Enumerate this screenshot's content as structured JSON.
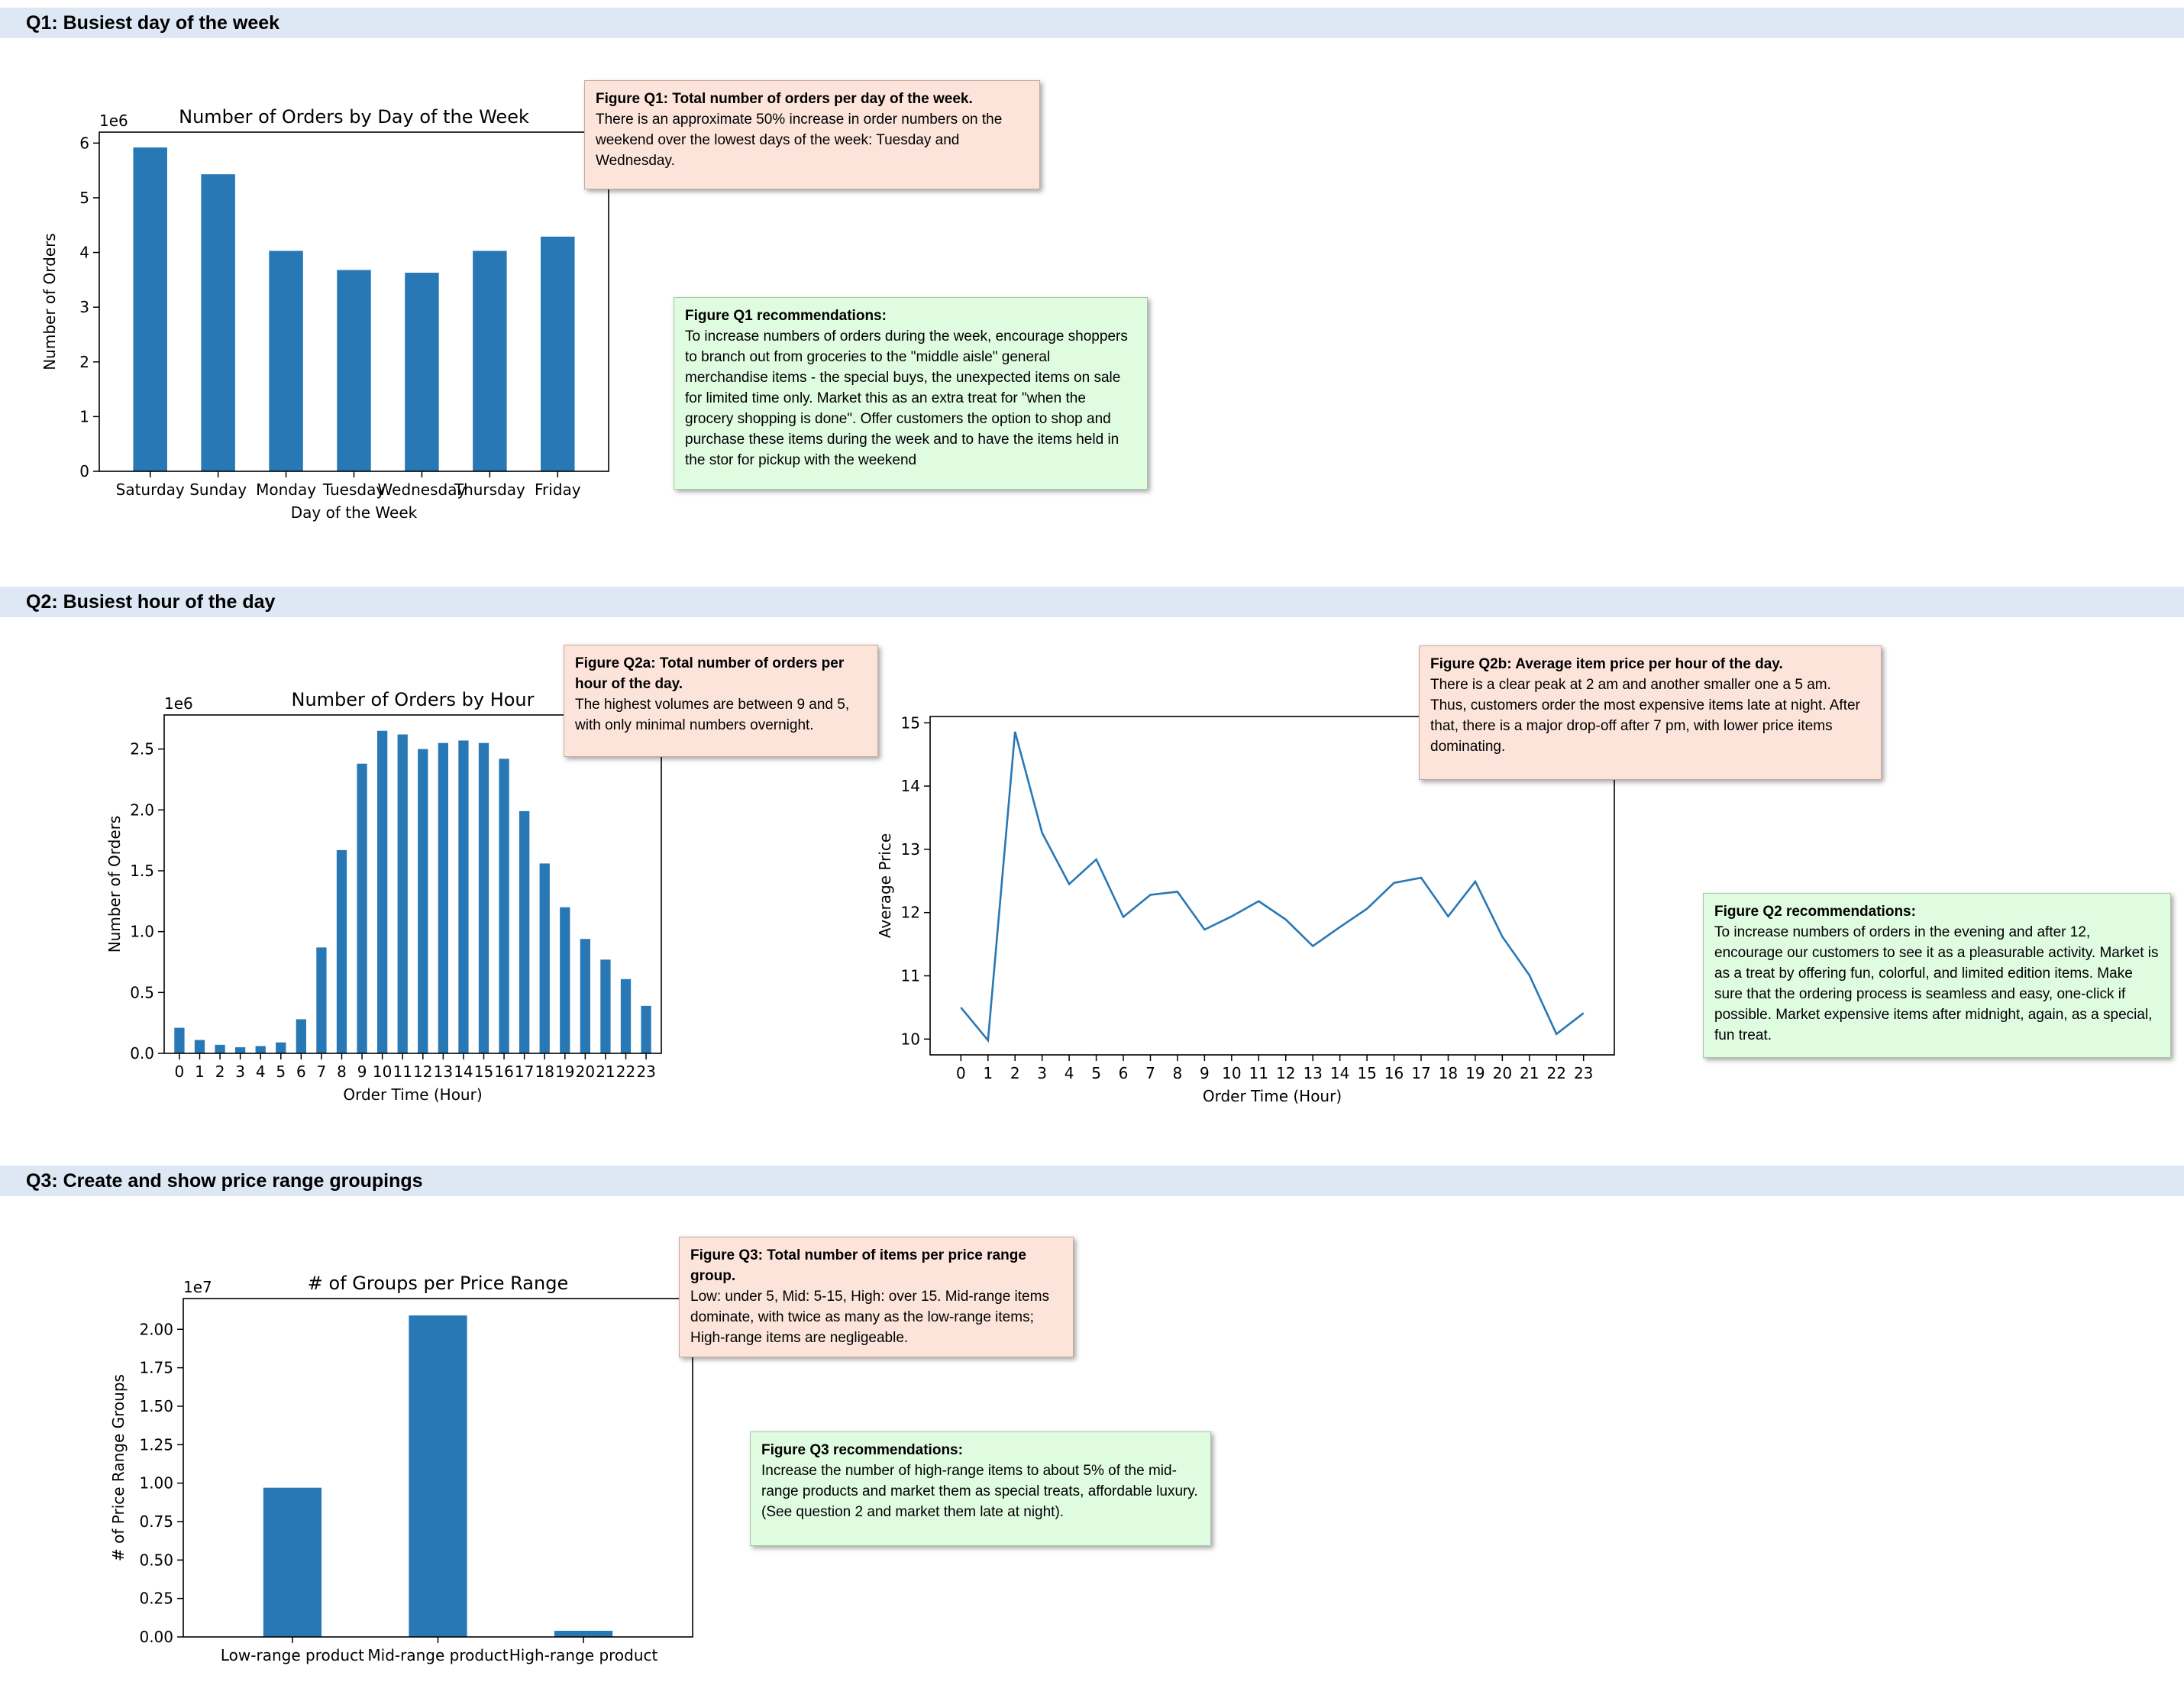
{
  "sections": {
    "q1": "Q1: Busiest day of the week",
    "q2": "Q2: Busiest hour of the day",
    "q3": "Q3: Create and show price range groupings"
  },
  "notes": {
    "q1_fig": {
      "title": "Figure Q1: Total number of orders  per day of the week.",
      "body": "There is an approximate 50% increase in order numbers on the weekend over the lowest days of the week: Tuesday and Wednesday."
    },
    "q1_rec": {
      "title": "Figure Q1 recommendations:",
      "body": "To increase numbers of orders during the week, encourage shoppers to branch out from groceries to the \"middle aisle\" general merchandise items  - the special buys, the unexpected items on sale for limited time only. Market this as an extra treat for \"when the grocery shopping is done\". Offer customers the option to shop and purchase these items during the week and to have the items held in the stor for pickup with the weekend"
    },
    "q2a_fig": {
      "title": "Figure Q2a: Total number of orders  per hour of the day.",
      "body": "The highest volumes are between 9 and 5, with only minimal numbers overnight."
    },
    "q2b_fig": {
      "title": "Figure Q2b: Average item price per hour of the day.",
      "body": "There is a clear peak at 2 am and another smaller one a 5 am. Thus, customers order the most expensive items late at night. After that, there is a major drop-off after 7 pm, with lower price items dominating."
    },
    "q2_rec": {
      "title": "Figure Q2 recommendations:",
      "body": "To increase numbers of orders in the evening and after 12, encourage our customers to see it as a pleasurable activity. Market is as a treat by offering fun, colorful, and limited edition items. Make sure that the ordering process is seamless and easy, one-click if possible. Market expensive items after midnight, again, as a special, fun treat."
    },
    "q3_fig": {
      "title": "Figure Q3: Total number of items per price range group.",
      "body": "Low: under 5, Mid: 5-15, High: over 15. Mid-range items dominate, with twice as many as the low-range items; High-range items are negligeable."
    },
    "q3_rec": {
      "title": "Figure Q3 recommendations:",
      "body": "Increase the number of high-range items to about 5% of the mid-range products and market them as special treats, affordable luxury. (See question 2 and market them late at night)."
    }
  },
  "colors": {
    "bar": "#2878b5",
    "line": "#2878b5"
  },
  "chart_data": [
    {
      "id": "q1",
      "type": "bar",
      "title": "Number of Orders by Day of the Week",
      "xlabel": "Day of the Week",
      "ylabel": "Number of Orders",
      "offset_label": "1e6",
      "categories": [
        "Saturday",
        "Sunday",
        "Monday",
        "Tuesday",
        "Wednesday",
        "Thursday",
        "Friday"
      ],
      "values": [
        5.92,
        5.43,
        4.03,
        3.68,
        3.63,
        4.03,
        4.29
      ],
      "ylim": [
        0,
        6.2
      ],
      "yticks": [
        0,
        1,
        2,
        3,
        4,
        5,
        6
      ],
      "ytick_labels": [
        "0",
        "1",
        "2",
        "3",
        "4",
        "5",
        "6"
      ],
      "grid": false
    },
    {
      "id": "q2a",
      "type": "bar",
      "title": "Number of Orders by Hour",
      "xlabel": "Order Time (Hour)",
      "ylabel": "Number of Orders",
      "offset_label": "1e6",
      "categories": [
        "0",
        "1",
        "2",
        "3",
        "4",
        "5",
        "6",
        "7",
        "8",
        "9",
        "10",
        "11",
        "12",
        "13",
        "14",
        "15",
        "16",
        "17",
        "18",
        "19",
        "20",
        "21",
        "22",
        "23"
      ],
      "values": [
        0.21,
        0.11,
        0.07,
        0.05,
        0.06,
        0.09,
        0.28,
        0.87,
        1.67,
        2.38,
        2.65,
        2.62,
        2.5,
        2.55,
        2.57,
        2.55,
        2.42,
        1.99,
        1.56,
        1.2,
        0.94,
        0.77,
        0.61,
        0.39
      ],
      "ylim": [
        0,
        2.78
      ],
      "yticks": [
        0,
        0.5,
        1.0,
        1.5,
        2.0,
        2.5
      ],
      "ytick_labels": [
        "0.0",
        "0.5",
        "1.0",
        "1.5",
        "2.0",
        "2.5"
      ],
      "grid": false
    },
    {
      "id": "q2b",
      "type": "line",
      "title": "",
      "xlabel": "Order Time (Hour)",
      "ylabel": "Average Price",
      "categories": [
        "0",
        "1",
        "2",
        "3",
        "4",
        "5",
        "6",
        "7",
        "8",
        "9",
        "10",
        "11",
        "12",
        "13",
        "14",
        "15",
        "16",
        "17",
        "18",
        "19",
        "20",
        "21",
        "22",
        "23"
      ],
      "values": [
        10.5,
        9.98,
        14.86,
        13.26,
        12.45,
        12.84,
        11.93,
        12.28,
        12.33,
        11.73,
        11.94,
        12.18,
        11.89,
        11.47,
        11.77,
        12.06,
        12.47,
        12.55,
        11.94,
        12.49,
        11.62,
        11.01,
        10.08,
        10.41
      ],
      "ylim": [
        9.75,
        15.1
      ],
      "yticks": [
        10,
        11,
        12,
        13,
        14,
        15
      ],
      "ytick_labels": [
        "10",
        "11",
        "12",
        "13",
        "14",
        "15"
      ],
      "grid": false
    },
    {
      "id": "q3",
      "type": "bar",
      "title": "# of Groups per Price Range",
      "xlabel": "",
      "ylabel": "# of Price Range Groups",
      "offset_label": "1e7",
      "categories": [
        "Low-range product",
        "Mid-range product",
        "High-range product"
      ],
      "values": [
        0.97,
        2.09,
        0.04
      ],
      "ylim": [
        0,
        2.2
      ],
      "yticks": [
        0,
        0.25,
        0.5,
        0.75,
        1.0,
        1.25,
        1.5,
        1.75,
        2.0
      ],
      "ytick_labels": [
        "0.00",
        "0.25",
        "0.50",
        "0.75",
        "1.00",
        "1.25",
        "1.50",
        "1.75",
        "2.00"
      ],
      "grid": false
    }
  ]
}
